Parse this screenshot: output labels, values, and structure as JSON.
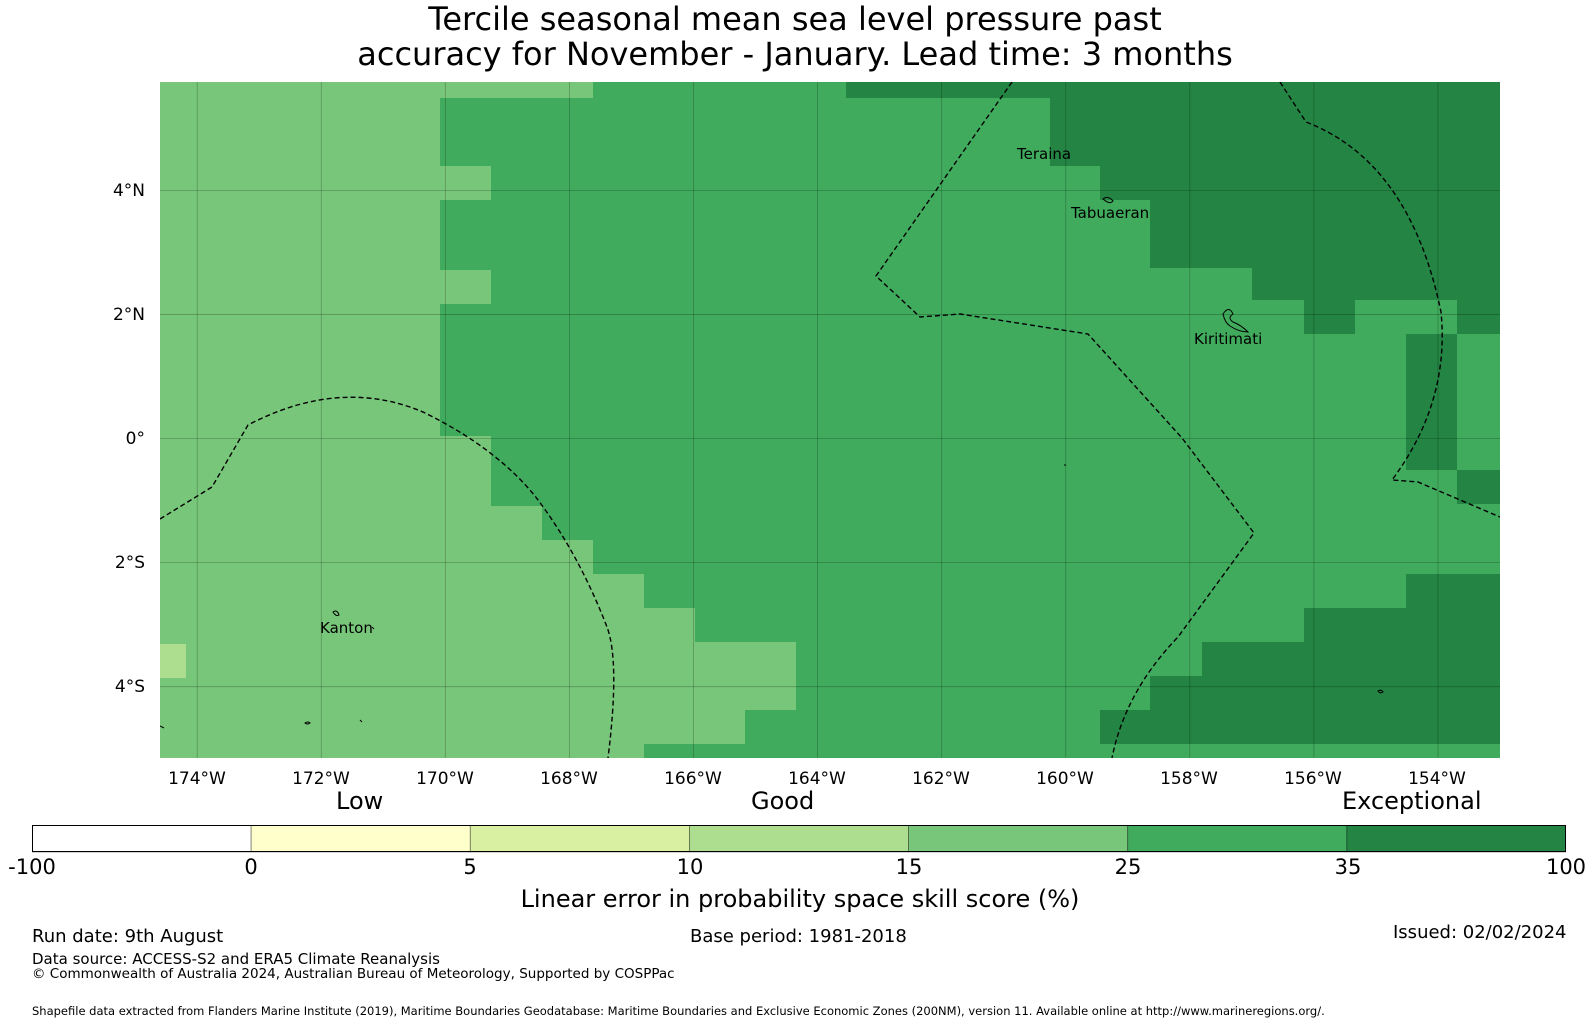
{
  "title": {
    "line1": "Tercile seasonal mean sea level pressure past",
    "line2": "accuracy for November - January. Lead time: 3 months"
  },
  "map": {
    "lat_ticks": [
      "4°N",
      "2°N",
      "0°",
      "2°S",
      "4°S"
    ],
    "lon_ticks": [
      "174°W",
      "172°W",
      "170°W",
      "168°W",
      "166°W",
      "164°W",
      "162°W",
      "160°W",
      "158°W",
      "156°W",
      "154°W"
    ],
    "places": [
      "Teraina",
      "Tabuaeran",
      "Kiritimati",
      "Kanton"
    ],
    "extent": {
      "lon_min": -174.6,
      "lon_max": -153.0,
      "lat_min": -5.15,
      "lat_max": 5.75
    },
    "grid_colors": {
      "0": "#ffffff",
      "1": "#ffffcc",
      "2": "#d9f0a3",
      "3": "#addd8e",
      "4": "#78c679",
      "5": "#41ab5d",
      "6": "#238443"
    }
  },
  "colorbar": {
    "categories": [
      "Low",
      "Good",
      "Exceptional"
    ],
    "ticks": [
      "-100",
      "0",
      "5",
      "10",
      "15",
      "25",
      "35",
      "100"
    ],
    "colors": [
      "#ffffff",
      "#ffffcc",
      "#d9f0a3",
      "#addd8e",
      "#78c679",
      "#41ab5d",
      "#238443"
    ],
    "label": "Linear error in probability space skill score (%)"
  },
  "footer": {
    "run_date": "Run date: 9th August",
    "base_period": "Base period: 1981-2018",
    "issued": "Issued: 02/02/2024",
    "data_source": "Data source: ACCESS-S2 and ERA5 Climate Reanalysis",
    "copyright": "© Commonwealth of Australia 2024, Australian Bureau of Meteorology, Supported by COSPPac",
    "shapefile": "Shapefile data extracted from Flanders Marine Institute (2019), Maritime Boundaries Geodatabase: Maritime Boundaries and Exclusive Economic Zones (200NM), version 11. Available online at http://www.marineregions.org/."
  }
}
